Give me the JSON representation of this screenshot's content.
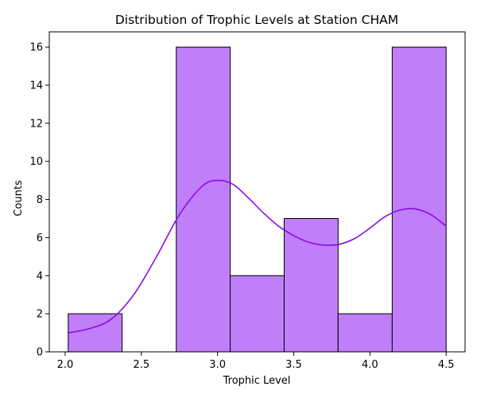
{
  "chart_data": {
    "type": "bar",
    "title": "Distribution of Trophic Levels at Station CHAM",
    "xlabel": "Trophic Level",
    "ylabel": "Counts",
    "bin_edges": [
      2.02,
      2.374,
      2.729,
      3.083,
      3.437,
      3.791,
      4.146,
      4.5
    ],
    "values": [
      2,
      0,
      16,
      4,
      7,
      2,
      16
    ],
    "xlim": [
      1.896,
      4.624
    ],
    "ylim": [
      0,
      16.8
    ],
    "xticks": [
      2.0,
      2.5,
      3.0,
      3.5,
      4.0,
      4.5
    ],
    "xtick_labels": [
      "2.0",
      "2.5",
      "3.0",
      "3.5",
      "4.0",
      "4.5"
    ],
    "yticks": [
      0,
      2,
      4,
      6,
      8,
      10,
      12,
      14,
      16
    ],
    "ytick_labels": [
      "0",
      "2",
      "4",
      "6",
      "8",
      "10",
      "12",
      "14",
      "16"
    ],
    "grid": false,
    "kde": {
      "x": [
        2.02,
        2.15,
        2.3,
        2.45,
        2.6,
        2.75,
        2.9,
        3.0,
        3.1,
        3.2,
        3.3,
        3.4,
        3.5,
        3.6,
        3.7,
        3.8,
        3.9,
        4.0,
        4.1,
        4.2,
        4.3,
        4.4,
        4.5
      ],
      "y": [
        1.0,
        1.2,
        1.7,
        3.0,
        5.0,
        7.2,
        8.7,
        9.0,
        8.8,
        8.1,
        7.3,
        6.6,
        6.1,
        5.75,
        5.6,
        5.65,
        5.95,
        6.5,
        7.1,
        7.45,
        7.5,
        7.2,
        6.6
      ]
    },
    "colors": {
      "bar_fill": "#c07ef9",
      "bar_edge": "#000000",
      "kde_line": "#8a0be8"
    }
  }
}
